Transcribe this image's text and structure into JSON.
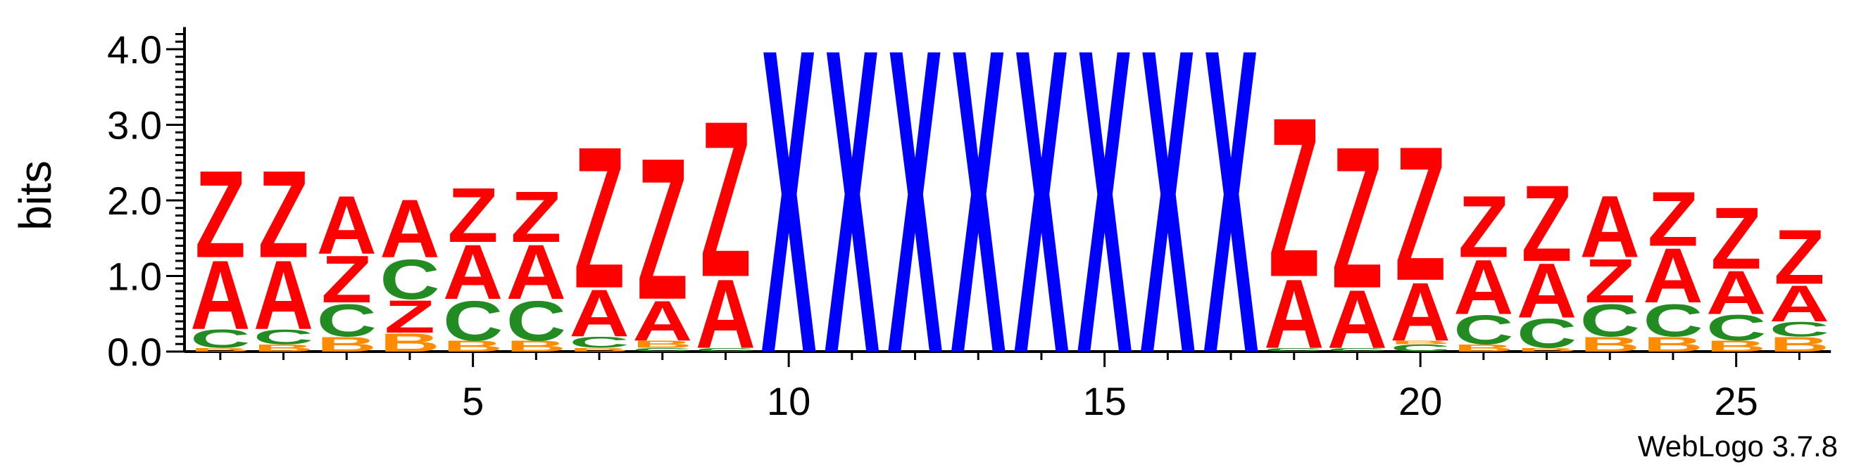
{
  "chart_data": {
    "type": "sequence-logo",
    "ylabel": "bits",
    "ylim": [
      0,
      4.2
    ],
    "y_ticks": [
      "0.0",
      "1.0",
      "2.0",
      "3.0",
      "4.0"
    ],
    "x_ticks": [
      5,
      10,
      15,
      20,
      25
    ],
    "credit": "WebLogo 3.7.8",
    "colors": {
      "Z": "#ff0000",
      "A": "#ff0000",
      "X": "#0000ff",
      "C": "#228b22",
      "B": "#ff8c00"
    },
    "positions": [
      {
        "pos": 1,
        "stack": [
          [
            "B",
            0.05
          ],
          [
            "C",
            0.25
          ],
          [
            "A",
            0.95
          ],
          [
            "Z",
            1.2
          ]
        ]
      },
      {
        "pos": 2,
        "stack": [
          [
            "B",
            0.1
          ],
          [
            "C",
            0.2
          ],
          [
            "A",
            0.95
          ],
          [
            "Z",
            1.2
          ]
        ]
      },
      {
        "pos": 3,
        "stack": [
          [
            "B",
            0.2
          ],
          [
            "C",
            0.45
          ],
          [
            "Z",
            0.65
          ],
          [
            "A",
            0.8
          ]
        ]
      },
      {
        "pos": 4,
        "stack": [
          [
            "B",
            0.25
          ],
          [
            "Z",
            0.45
          ],
          [
            "C",
            0.55
          ],
          [
            "A",
            0.8
          ]
        ]
      },
      {
        "pos": 5,
        "stack": [
          [
            "B",
            0.15
          ],
          [
            "C",
            0.55
          ],
          [
            "A",
            0.75
          ],
          [
            "Z",
            0.75
          ]
        ]
      },
      {
        "pos": 6,
        "stack": [
          [
            "B",
            0.15
          ],
          [
            "C",
            0.55
          ],
          [
            "A",
            0.75
          ],
          [
            "Z",
            0.7
          ]
        ]
      },
      {
        "pos": 7,
        "stack": [
          [
            "B",
            0.05
          ],
          [
            "C",
            0.15
          ],
          [
            "A",
            0.65
          ],
          [
            "Z",
            1.95
          ]
        ]
      },
      {
        "pos": 8,
        "stack": [
          [
            "C",
            0.05
          ],
          [
            "B",
            0.1
          ],
          [
            "A",
            0.55
          ],
          [
            "Z",
            1.95
          ]
        ]
      },
      {
        "pos": 9,
        "stack": [
          [
            "C",
            0.05
          ],
          [
            "A",
            0.95
          ],
          [
            "Z",
            2.15
          ]
        ]
      },
      {
        "pos": 10,
        "stack": [
          [
            "X",
            4.2
          ]
        ]
      },
      {
        "pos": 11,
        "stack": [
          [
            "X",
            4.2
          ]
        ]
      },
      {
        "pos": 12,
        "stack": [
          [
            "X",
            4.2
          ]
        ]
      },
      {
        "pos": 13,
        "stack": [
          [
            "X",
            4.2
          ]
        ]
      },
      {
        "pos": 14,
        "stack": [
          [
            "X",
            4.2
          ]
        ]
      },
      {
        "pos": 15,
        "stack": [
          [
            "X",
            4.2
          ]
        ]
      },
      {
        "pos": 16,
        "stack": [
          [
            "X",
            4.2
          ]
        ]
      },
      {
        "pos": 17,
        "stack": [
          [
            "X",
            4.2
          ]
        ]
      },
      {
        "pos": 18,
        "stack": [
          [
            "C",
            0.05
          ],
          [
            "A",
            0.95
          ],
          [
            "Z",
            2.2
          ]
        ]
      },
      {
        "pos": 19,
        "stack": [
          [
            "C",
            0.05
          ],
          [
            "A",
            0.8
          ],
          [
            "Z",
            1.95
          ]
        ]
      },
      {
        "pos": 20,
        "stack": [
          [
            "C",
            0.1
          ],
          [
            "B",
            0.05
          ],
          [
            "A",
            0.8
          ],
          [
            "Z",
            1.85
          ]
        ]
      },
      {
        "pos": 21,
        "stack": [
          [
            "B",
            0.1
          ],
          [
            "C",
            0.4
          ],
          [
            "A",
            0.75
          ],
          [
            "Z",
            0.85
          ]
        ]
      },
      {
        "pos": 22,
        "stack": [
          [
            "B",
            0.05
          ],
          [
            "C",
            0.4
          ],
          [
            "A",
            0.75
          ],
          [
            "Z",
            1.05
          ]
        ]
      },
      {
        "pos": 23,
        "stack": [
          [
            "B",
            0.2
          ],
          [
            "C",
            0.45
          ],
          [
            "Z",
            0.6
          ],
          [
            "A",
            0.85
          ]
        ]
      },
      {
        "pos": 24,
        "stack": [
          [
            "B",
            0.2
          ],
          [
            "C",
            0.45
          ],
          [
            "A",
            0.75
          ],
          [
            "Z",
            0.75
          ]
        ]
      },
      {
        "pos": 25,
        "stack": [
          [
            "B",
            0.15
          ],
          [
            "C",
            0.35
          ],
          [
            "A",
            0.6
          ],
          [
            "Z",
            0.85
          ]
        ]
      },
      {
        "pos": 26,
        "stack": [
          [
            "B",
            0.2
          ],
          [
            "C",
            0.2
          ],
          [
            "A",
            0.5
          ],
          [
            "Z",
            0.75
          ]
        ]
      }
    ]
  }
}
